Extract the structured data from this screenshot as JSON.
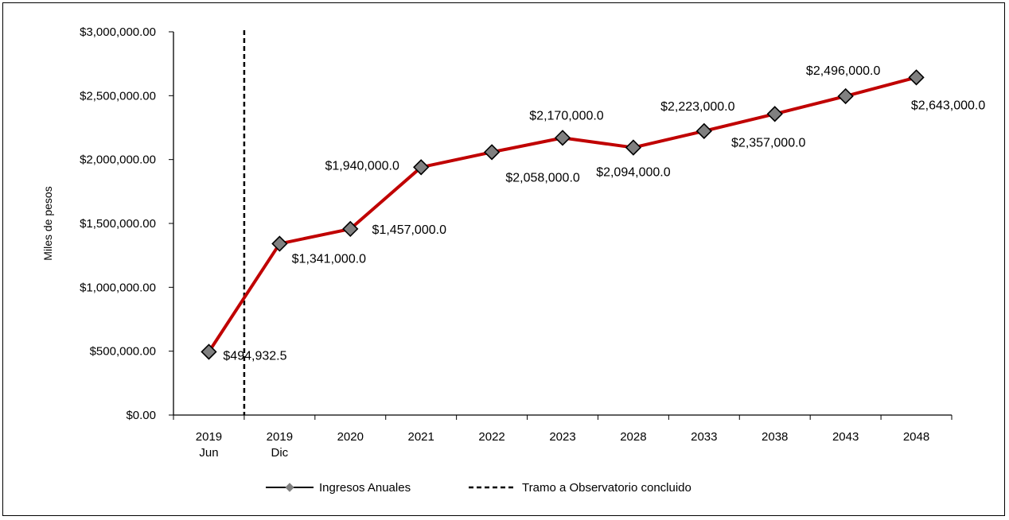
{
  "chart_data": {
    "type": "line",
    "title": "",
    "ylabel": "Miles de pesos",
    "xlabel": "",
    "ylim": [
      0,
      3000000
    ],
    "yticks": [
      0,
      500000,
      1000000,
      1500000,
      2000000,
      2500000,
      3000000
    ],
    "ytick_labels": [
      "$0.00",
      "$500,000.00",
      "$1,000,000.00",
      "$1,500,000.00",
      "$2,000,000.00",
      "$2,500,000.00",
      "$3,000,000.00"
    ],
    "categories": [
      [
        "2019",
        "Jun"
      ],
      [
        "2019",
        "Dic"
      ],
      [
        "2020"
      ],
      [
        "2021"
      ],
      [
        "2022"
      ],
      [
        "2023"
      ],
      [
        "2028"
      ],
      [
        "2033"
      ],
      [
        "2038"
      ],
      [
        "2043"
      ],
      [
        "2048"
      ]
    ],
    "series": [
      {
        "name": "Ingresos Anuales",
        "values": [
          494932.5,
          1341000,
          1457000,
          1940000,
          2058000,
          2170000,
          2094000,
          2223000,
          2357000,
          2496000,
          2643000
        ],
        "labels": [
          "$494,932.5",
          "$1,341,000.0",
          "$1,457,000.0",
          "$1,940,000.0",
          "$2,058,000.0",
          "$2,170,000.0",
          "$2,094,000.0",
          "$2,223,000.0",
          "$2,357,000.0",
          "$2,496,000.0",
          "$2,643,000.0"
        ],
        "line_color": "#c00000",
        "marker_color": "#808080"
      }
    ],
    "reference_line": {
      "name": "Tramo a Observatorio concluido",
      "position": "between 2019 Jun and 2019 Dic",
      "style": "dashed",
      "color": "#000000"
    },
    "legend_position": "bottom",
    "grid": false
  }
}
